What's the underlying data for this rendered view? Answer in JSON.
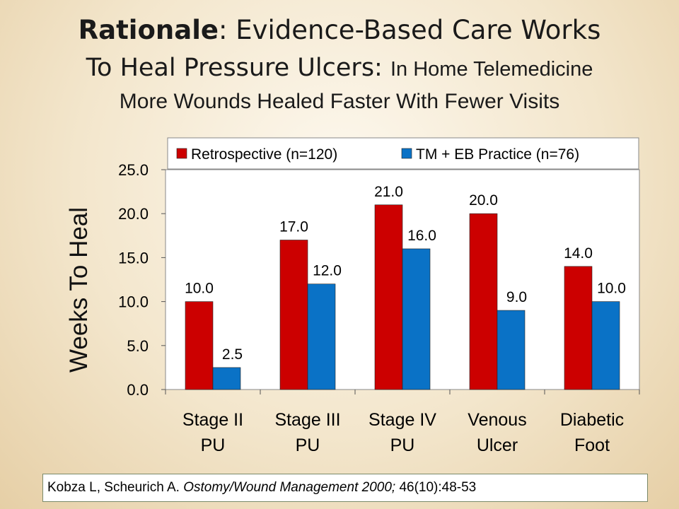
{
  "slide": {
    "title_bold": "Rationale",
    "title_rest": ":  Evidence-Based Care Works",
    "subtitle_main": "To Heal Pressure Ulcers:",
    "subtitle_small": "In Home Telemedicine",
    "subtitle_line3": "More Wounds Healed Faster With Fewer Visits",
    "citation_authors": "Kobza L, Scheurich A. ",
    "citation_journal": "Ostomy/Wound Management 2000;",
    "citation_ref": " 46(10):48-53"
  },
  "chart_data": {
    "type": "bar",
    "categories": [
      [
        "Stage II",
        "PU"
      ],
      [
        "Stage III",
        "PU"
      ],
      [
        "Stage IV",
        "PU"
      ],
      [
        "Venous",
        "Ulcer"
      ],
      [
        "Diabetic",
        "Foot"
      ]
    ],
    "series": [
      {
        "name": "Retrospective (n=120)",
        "values": [
          10.0,
          17.0,
          21.0,
          20.0,
          14.0
        ],
        "labels": [
          "10.0",
          "17.0",
          "21.0",
          "20.0",
          "14.0"
        ],
        "color": "#cc0000"
      },
      {
        "name": "TM + EB Practice (n=76)",
        "values": [
          2.5,
          12.0,
          16.0,
          9.0,
          10.0
        ],
        "labels": [
          "2.5",
          "12.0",
          "16.0",
          "9.0",
          "10.0"
        ],
        "color": "#0a72c6"
      }
    ],
    "ylabel": "Weeks To Heal",
    "ylim": [
      0,
      25
    ],
    "yticks": [
      "0.0",
      "5.0",
      "10.0",
      "15.0",
      "20.0",
      "25.0"
    ],
    "grid": false,
    "legend": "top"
  }
}
